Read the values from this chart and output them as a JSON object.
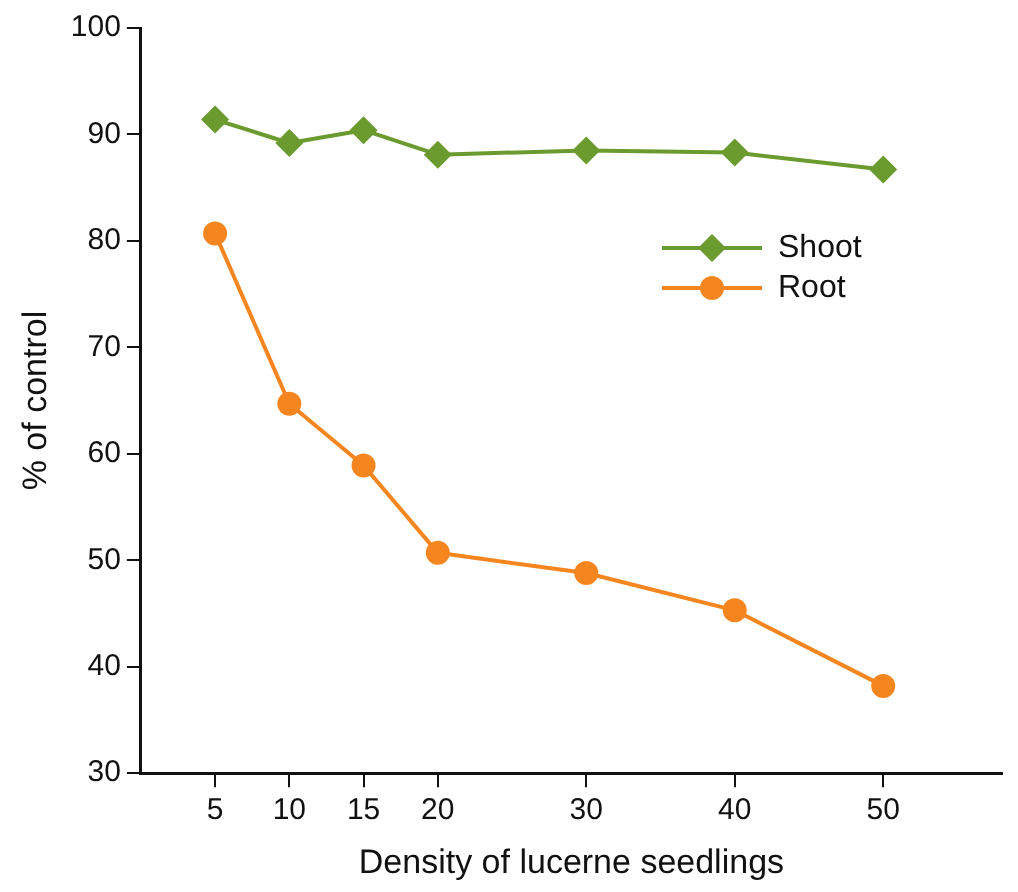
{
  "chart_data": {
    "type": "line",
    "xlabel": "Density of lucerne seedlings",
    "ylabel": "% of control",
    "x": [
      5,
      10,
      15,
      20,
      30,
      40,
      50
    ],
    "series": [
      {
        "name": "Shoot",
        "color": "#6b9b2f",
        "marker": "diamond",
        "values": [
          91.4,
          89.2,
          90.4,
          88.1,
          88.5,
          88.3,
          86.7
        ]
      },
      {
        "name": "Root",
        "color": "#f5861f",
        "marker": "circle",
        "values": [
          80.7,
          64.7,
          58.9,
          50.7,
          48.8,
          45.3,
          38.2
        ]
      }
    ],
    "xlim": [
      0,
      58
    ],
    "xticks": [
      5,
      10,
      15,
      20,
      30,
      40,
      50
    ],
    "ylim": [
      30,
      100
    ],
    "yticks": [
      30,
      40,
      50,
      60,
      70,
      80,
      90,
      100
    ],
    "grid": false,
    "legend": "right"
  }
}
